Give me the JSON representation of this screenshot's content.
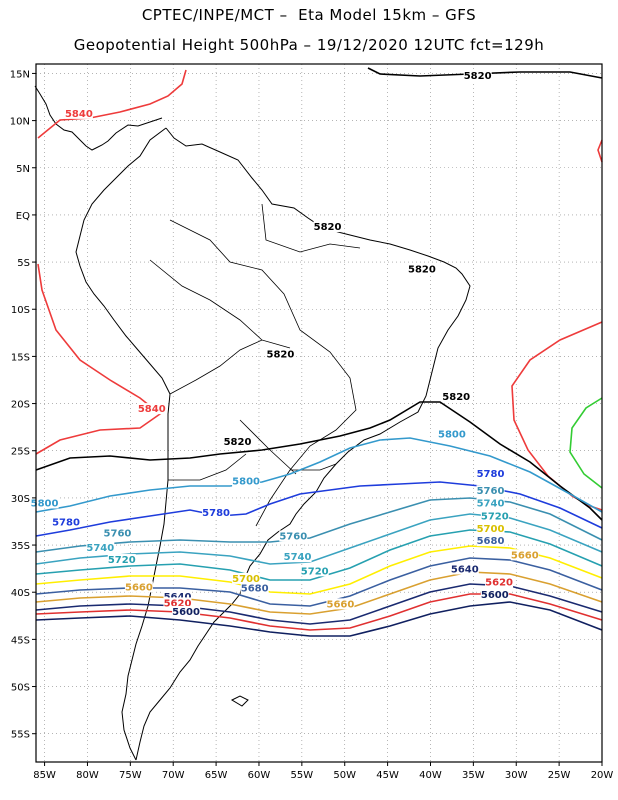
{
  "title": {
    "line1": "CPTEC/INPE/MCT –  Eta Model 15km – GFS",
    "line2": "Geopotential Height 500hPa – 19/12/2020 12UTC fct=129h"
  },
  "map": {
    "lon_range": [
      -86,
      -20
    ],
    "lat_range": [
      -58,
      16
    ],
    "lon_ticks": [
      {
        "v": -85,
        "label": "85W"
      },
      {
        "v": -80,
        "label": "80W"
      },
      {
        "v": -75,
        "label": "75W"
      },
      {
        "v": -70,
        "label": "70W"
      },
      {
        "v": -65,
        "label": "65W"
      },
      {
        "v": -60,
        "label": "60W"
      },
      {
        "v": -55,
        "label": "55W"
      },
      {
        "v": -50,
        "label": "50W"
      },
      {
        "v": -45,
        "label": "45W"
      },
      {
        "v": -40,
        "label": "40W"
      },
      {
        "v": -35,
        "label": "35W"
      },
      {
        "v": -30,
        "label": "30W"
      },
      {
        "v": -25,
        "label": "25W"
      },
      {
        "v": -20,
        "label": "20W"
      }
    ],
    "lat_ticks": [
      {
        "v": 15,
        "label": "15N"
      },
      {
        "v": 10,
        "label": "10N"
      },
      {
        "v": 5,
        "label": "5N"
      },
      {
        "v": 0,
        "label": "EQ"
      },
      {
        "v": -5,
        "label": "5S"
      },
      {
        "v": -10,
        "label": "10S"
      },
      {
        "v": -15,
        "label": "15S"
      },
      {
        "v": -20,
        "label": "20S"
      },
      {
        "v": -25,
        "label": "25S"
      },
      {
        "v": -30,
        "label": "30S"
      },
      {
        "v": -35,
        "label": "35S"
      },
      {
        "v": -40,
        "label": "40S"
      },
      {
        "v": -45,
        "label": "45S"
      },
      {
        "v": -50,
        "label": "50S"
      },
      {
        "v": -55,
        "label": "55S"
      }
    ],
    "grid": "dotted",
    "contour_colors": {
      "5840": "#ee3b3b",
      "5820": "#000000",
      "5800": "#3399cc",
      "5780": "#1e3cdc",
      "5760": "#3a8fb0",
      "5740": "#3aa3c0",
      "5720": "#26a0b0",
      "5700": "#ffee00",
      "5680": "#3a5fa0",
      "5660": "#d9a030",
      "5640": "#1a2a70",
      "5620": "#e03030",
      "5600": "#102060",
      "green": "#33cc33"
    },
    "contour_labels": [
      {
        "text": "5840",
        "lon": -81,
        "lat": 10.5,
        "color": "#ee3b3b"
      },
      {
        "text": "5840",
        "lon": -72.5,
        "lat": -20.8,
        "color": "#ee3b3b"
      },
      {
        "text": "5820",
        "lon": -34.5,
        "lat": 14.5,
        "color": "#000000"
      },
      {
        "text": "5820",
        "lon": -52,
        "lat": -1.5,
        "color": "#000000"
      },
      {
        "text": "5820",
        "lon": -41,
        "lat": -6,
        "color": "#000000"
      },
      {
        "text": "5820",
        "lon": -57.5,
        "lat": -15,
        "color": "#000000"
      },
      {
        "text": "5820",
        "lon": -37,
        "lat": -19.5,
        "color": "#000000"
      },
      {
        "text": "5820",
        "lon": -62.5,
        "lat": -24.3,
        "color": "#000000"
      },
      {
        "text": "5800",
        "lon": -37.5,
        "lat": -23.5,
        "color": "#3399cc"
      },
      {
        "text": "5800",
        "lon": -85,
        "lat": -30.8,
        "color": "#3399cc"
      },
      {
        "text": "5800",
        "lon": -61.5,
        "lat": -28.5,
        "color": "#3399cc"
      },
      {
        "text": "5780",
        "lon": -33,
        "lat": -27.7,
        "color": "#1e3cdc"
      },
      {
        "text": "5780",
        "lon": -82.5,
        "lat": -32.8,
        "color": "#1e3cdc"
      },
      {
        "text": "5780",
        "lon": -65,
        "lat": -31.8,
        "color": "#1e3cdc"
      },
      {
        "text": "5760",
        "lon": -33,
        "lat": -29.5,
        "color": "#3a8fb0"
      },
      {
        "text": "5760",
        "lon": -76.5,
        "lat": -34,
        "color": "#3a8fb0"
      },
      {
        "text": "5760",
        "lon": -56,
        "lat": -34.3,
        "color": "#3a8fb0"
      },
      {
        "text": "5740",
        "lon": -33,
        "lat": -30.8,
        "color": "#3aa3c0"
      },
      {
        "text": "5740",
        "lon": -78.5,
        "lat": -35.5,
        "color": "#3aa3c0"
      },
      {
        "text": "5740",
        "lon": -55.5,
        "lat": -36.5,
        "color": "#3aa3c0"
      },
      {
        "text": "5720",
        "lon": -32.5,
        "lat": -32.2,
        "color": "#26a0b0"
      },
      {
        "text": "5720",
        "lon": -76,
        "lat": -36.8,
        "color": "#26a0b0"
      },
      {
        "text": "5720",
        "lon": -53.5,
        "lat": -38,
        "color": "#26a0b0"
      },
      {
        "text": "5700",
        "lon": -33,
        "lat": -33.5,
        "color": "#d9c000"
      },
      {
        "text": "5700",
        "lon": -61.5,
        "lat": -38.8,
        "color": "#d9c000"
      },
      {
        "text": "5680",
        "lon": -33,
        "lat": -34.8,
        "color": "#3a5fa0"
      },
      {
        "text": "5680",
        "lon": -60.5,
        "lat": -39.8,
        "color": "#3a5fa0"
      },
      {
        "text": "5660",
        "lon": -29,
        "lat": -36.3,
        "color": "#d9a030"
      },
      {
        "text": "5660",
        "lon": -74,
        "lat": -39.7,
        "color": "#d9a030"
      },
      {
        "text": "5660",
        "lon": -50.5,
        "lat": -41.5,
        "color": "#d9a030"
      },
      {
        "text": "5640",
        "lon": -36,
        "lat": -37.8,
        "color": "#1a2a70"
      },
      {
        "text": "5640",
        "lon": -69.5,
        "lat": -40.7,
        "color": "#1a2a70"
      },
      {
        "text": "5620",
        "lon": -32,
        "lat": -39.2,
        "color": "#e03030"
      },
      {
        "text": "5620",
        "lon": -69.5,
        "lat": -41.4,
        "color": "#e03030"
      },
      {
        "text": "5600",
        "lon": -32.5,
        "lat": -40.5,
        "color": "#102060"
      },
      {
        "text": "5600",
        "lon": -68.5,
        "lat": -42.3,
        "color": "#102060"
      }
    ]
  }
}
